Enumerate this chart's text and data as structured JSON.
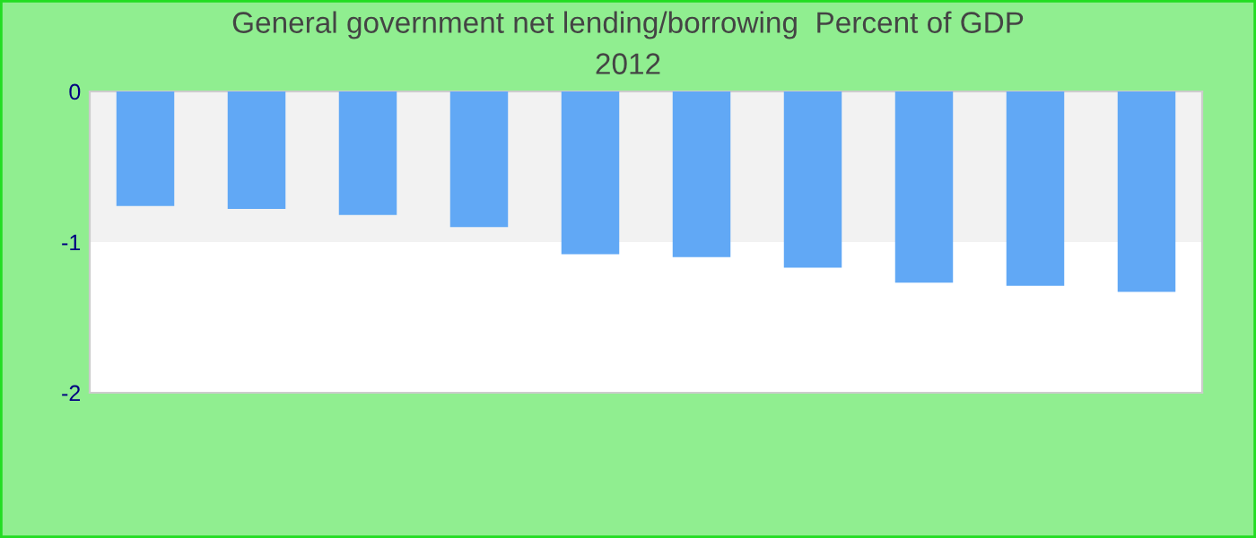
{
  "chart_data": {
    "type": "bar",
    "title": "General government net lending/borrowing  Percent of GDP",
    "subtitle": "2012",
    "categories": [
      null,
      null,
      null,
      null,
      null,
      null,
      null,
      null,
      null,
      null
    ],
    "values": [
      -0.76,
      -0.78,
      -0.82,
      -0.9,
      -1.08,
      -1.1,
      -1.17,
      -1.27,
      -1.29,
      -1.33
    ],
    "color": "#61a8f5",
    "ylim": [
      -2,
      0
    ],
    "yticks": [
      -2,
      -1,
      0
    ],
    "grid": false,
    "bands": [
      {
        "axis": "y",
        "from": -1,
        "to": 0,
        "color": "#f2f2f2"
      }
    ]
  }
}
